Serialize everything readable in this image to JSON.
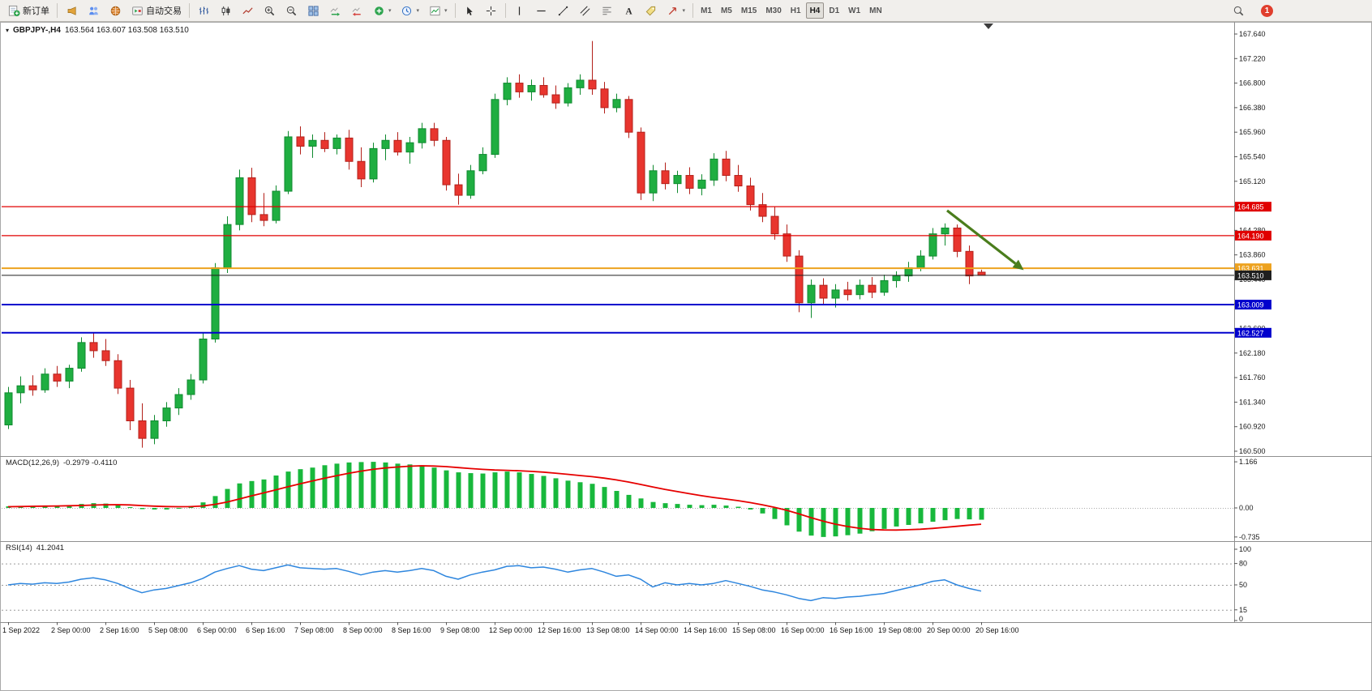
{
  "toolbar": {
    "new_order_label": "新订单",
    "autotrade_label": "自动交易",
    "timeframes": [
      "M1",
      "M5",
      "M15",
      "M30",
      "H1",
      "H4",
      "D1",
      "W1",
      "MN"
    ],
    "active_timeframe": "H4",
    "notification_count": "1"
  },
  "chart": {
    "title": "GBPJPY-,H4",
    "ohlc_text": "163.564 163.607 163.508 163.510",
    "macd_name": "MACD(12,26,9)",
    "macd_values": "-0.2979 -0.4110",
    "rsi_name": "RSI(14)",
    "rsi_value": "41.2041"
  },
  "chart_data": {
    "type": "candlestick",
    "symbol": "GBPJPY-",
    "timeframe": "H4",
    "ohlc_display": {
      "open": 163.564,
      "high": 163.607,
      "low": 163.508,
      "close": 163.51
    },
    "y_axis": {
      "min": 160.5,
      "max": 167.64,
      "step": 0.42
    },
    "colors": {
      "up": "#1fae41",
      "up_stroke": "#0f8a2f",
      "down": "#e8352e",
      "down_stroke": "#b3201a",
      "macd_hist": "#18b83c",
      "macd_signal": "#e60000",
      "rsi_line": "#2e86de"
    },
    "candles": [
      [
        160.95,
        161.6,
        160.88,
        161.5
      ],
      [
        161.5,
        161.78,
        161.32,
        161.62
      ],
      [
        161.62,
        161.8,
        161.45,
        161.55
      ],
      [
        161.55,
        161.92,
        161.5,
        161.82
      ],
      [
        161.82,
        161.96,
        161.6,
        161.7
      ],
      [
        161.7,
        161.98,
        161.58,
        161.92
      ],
      [
        161.92,
        162.45,
        161.86,
        162.36
      ],
      [
        162.36,
        162.52,
        162.1,
        162.22
      ],
      [
        162.22,
        162.42,
        161.96,
        162.05
      ],
      [
        162.05,
        162.16,
        161.48,
        161.58
      ],
      [
        161.58,
        161.72,
        160.86,
        161.02
      ],
      [
        161.02,
        161.32,
        160.56,
        160.72
      ],
      [
        160.72,
        161.12,
        160.62,
        161.02
      ],
      [
        161.02,
        161.34,
        160.92,
        161.24
      ],
      [
        161.24,
        161.58,
        161.12,
        161.47
      ],
      [
        161.47,
        161.82,
        161.38,
        161.72
      ],
      [
        161.72,
        162.52,
        161.66,
        162.42
      ],
      [
        162.42,
        163.72,
        162.36,
        163.64
      ],
      [
        163.64,
        164.52,
        163.55,
        164.38
      ],
      [
        164.38,
        165.32,
        164.28,
        165.18
      ],
      [
        165.18,
        165.35,
        164.42,
        164.55
      ],
      [
        164.55,
        164.92,
        164.35,
        164.45
      ],
      [
        164.45,
        165.05,
        164.4,
        164.95
      ],
      [
        164.95,
        165.98,
        164.9,
        165.88
      ],
      [
        165.88,
        166.06,
        165.58,
        165.72
      ],
      [
        165.72,
        165.92,
        165.52,
        165.82
      ],
      [
        165.82,
        165.96,
        165.62,
        165.68
      ],
      [
        165.68,
        165.92,
        165.58,
        165.86
      ],
      [
        165.86,
        166.0,
        165.32,
        165.46
      ],
      [
        165.46,
        165.7,
        165.02,
        165.16
      ],
      [
        165.16,
        165.78,
        165.1,
        165.68
      ],
      [
        165.68,
        165.92,
        165.48,
        165.82
      ],
      [
        165.82,
        165.96,
        165.56,
        165.62
      ],
      [
        165.62,
        165.88,
        165.42,
        165.78
      ],
      [
        165.78,
        166.12,
        165.68,
        166.02
      ],
      [
        166.02,
        166.12,
        165.72,
        165.82
      ],
      [
        165.82,
        165.88,
        164.96,
        165.06
      ],
      [
        165.06,
        165.25,
        164.72,
        164.88
      ],
      [
        164.88,
        165.4,
        164.82,
        165.3
      ],
      [
        165.3,
        165.7,
        165.24,
        165.58
      ],
      [
        165.58,
        166.62,
        165.52,
        166.52
      ],
      [
        166.52,
        166.9,
        166.42,
        166.8
      ],
      [
        166.8,
        166.95,
        166.55,
        166.65
      ],
      [
        166.65,
        166.86,
        166.5,
        166.76
      ],
      [
        166.76,
        166.9,
        166.55,
        166.6
      ],
      [
        166.6,
        166.76,
        166.36,
        166.46
      ],
      [
        166.46,
        166.8,
        166.4,
        166.72
      ],
      [
        166.72,
        166.95,
        166.6,
        166.85
      ],
      [
        166.85,
        167.52,
        166.6,
        166.7
      ],
      [
        166.7,
        166.82,
        166.28,
        166.38
      ],
      [
        166.38,
        166.62,
        166.3,
        166.52
      ],
      [
        166.52,
        166.58,
        165.86,
        165.96
      ],
      [
        165.96,
        166.04,
        164.8,
        164.92
      ],
      [
        164.92,
        165.4,
        164.78,
        165.3
      ],
      [
        165.3,
        165.44,
        164.98,
        165.08
      ],
      [
        165.08,
        165.3,
        164.92,
        165.22
      ],
      [
        165.22,
        165.36,
        164.9,
        165.0
      ],
      [
        165.0,
        165.24,
        164.88,
        165.14
      ],
      [
        165.14,
        165.6,
        165.04,
        165.5
      ],
      [
        165.5,
        165.64,
        165.12,
        165.22
      ],
      [
        165.22,
        165.4,
        164.94,
        165.04
      ],
      [
        165.04,
        165.18,
        164.62,
        164.72
      ],
      [
        164.72,
        164.92,
        164.42,
        164.52
      ],
      [
        164.52,
        164.68,
        164.12,
        164.22
      ],
      [
        164.22,
        164.38,
        163.74,
        163.84
      ],
      [
        163.84,
        163.94,
        162.88,
        163.04
      ],
      [
        163.04,
        163.44,
        162.78,
        163.34
      ],
      [
        163.34,
        163.46,
        163.02,
        163.12
      ],
      [
        163.12,
        163.36,
        162.96,
        163.26
      ],
      [
        163.26,
        163.4,
        163.08,
        163.18
      ],
      [
        163.18,
        163.44,
        163.1,
        163.34
      ],
      [
        163.34,
        163.48,
        163.12,
        163.22
      ],
      [
        163.22,
        163.52,
        163.16,
        163.42
      ],
      [
        163.42,
        163.58,
        163.3,
        163.5
      ],
      [
        163.5,
        163.74,
        163.4,
        163.64
      ],
      [
        163.64,
        163.94,
        163.58,
        163.84
      ],
      [
        163.84,
        164.32,
        163.78,
        164.22
      ],
      [
        164.22,
        164.4,
        164.02,
        164.32
      ],
      [
        164.32,
        164.38,
        163.82,
        163.92
      ],
      [
        163.92,
        164.02,
        163.36,
        163.5
      ],
      [
        163.564,
        163.607,
        163.508,
        163.51
      ]
    ],
    "time_labels": [
      {
        "i": 0,
        "t": "1 Sep 2022"
      },
      {
        "i": 4,
        "t": "2 Sep 00:00"
      },
      {
        "i": 8,
        "t": "2 Sep 16:00"
      },
      {
        "i": 12,
        "t": "5 Sep 08:00"
      },
      {
        "i": 16,
        "t": "6 Sep 00:00"
      },
      {
        "i": 20,
        "t": "6 Sep 16:00"
      },
      {
        "i": 24,
        "t": "7 Sep 08:00"
      },
      {
        "i": 28,
        "t": "8 Sep 00:00"
      },
      {
        "i": 32,
        "t": "8 Sep 16:00"
      },
      {
        "i": 36,
        "t": "9 Sep 08:00"
      },
      {
        "i": 40,
        "t": "12 Sep 00:00"
      },
      {
        "i": 44,
        "t": "12 Sep 16:00"
      },
      {
        "i": 48,
        "t": "13 Sep 08:00"
      },
      {
        "i": 52,
        "t": "14 Sep 00:00"
      },
      {
        "i": 56,
        "t": "14 Sep 16:00"
      },
      {
        "i": 60,
        "t": "15 Sep 08:00"
      },
      {
        "i": 64,
        "t": "16 Sep 00:00"
      },
      {
        "i": 68,
        "t": "16 Sep 16:00"
      },
      {
        "i": 72,
        "t": "19 Sep 08:00"
      },
      {
        "i": 76,
        "t": "20 Sep 00:00"
      },
      {
        "i": 80,
        "t": "20 Sep 16:00"
      }
    ],
    "hlines": [
      {
        "price": 164.685,
        "label": "164.685",
        "color": "#e00000",
        "width": 1.2
      },
      {
        "price": 164.19,
        "label": "164.190",
        "color": "#e00000",
        "width": 1.2
      },
      {
        "price": 163.631,
        "label": "163.631",
        "color": "#eda21f",
        "width": 2
      },
      {
        "price": 163.51,
        "label": "163.510",
        "color": "#1f1f1f",
        "width": 1
      },
      {
        "price": 163.009,
        "label": "163.009",
        "color": "#0000cd",
        "width": 2
      },
      {
        "price": 162.527,
        "label": "162.527",
        "color": "#0000cd",
        "width": 2
      }
    ],
    "arrow": {
      "from": {
        "i": 77.2,
        "price": 164.62
      },
      "to": {
        "i": 83.5,
        "price": 163.6
      },
      "color": "#4a7d1c"
    },
    "macd": {
      "name": "MACD(12,26,9)",
      "main_value": -0.2979,
      "signal_value": -0.411,
      "axis_labels": [
        {
          "v": 1.166,
          "t": "1.166"
        },
        {
          "v": 0,
          "t": "0.00"
        },
        {
          "v": -0.735,
          "t": "-0.735"
        }
      ],
      "histogram": [
        0.04,
        0.05,
        0.05,
        0.06,
        0.06,
        0.07,
        0.1,
        0.12,
        0.11,
        0.07,
        0.02,
        -0.03,
        -0.04,
        -0.04,
        -0.01,
        0.05,
        0.14,
        0.3,
        0.48,
        0.62,
        0.68,
        0.72,
        0.82,
        0.92,
        0.98,
        1.02,
        1.08,
        1.12,
        1.15,
        1.16,
        1.166,
        1.15,
        1.12,
        1.1,
        1.08,
        1.02,
        0.95,
        0.9,
        0.88,
        0.87,
        0.9,
        0.92,
        0.9,
        0.86,
        0.81,
        0.75,
        0.69,
        0.65,
        0.61,
        0.53,
        0.43,
        0.33,
        0.24,
        0.15,
        0.12,
        0.1,
        0.08,
        0.07,
        0.08,
        0.06,
        0.03,
        -0.04,
        -0.14,
        -0.28,
        -0.44,
        -0.6,
        -0.7,
        -0.735,
        -0.72,
        -0.69,
        -0.65,
        -0.59,
        -0.53,
        -0.47,
        -0.43,
        -0.39,
        -0.35,
        -0.31,
        -0.28,
        -0.29,
        -0.2979
      ],
      "signal": [
        0.03,
        0.035,
        0.04,
        0.045,
        0.05,
        0.055,
        0.062,
        0.072,
        0.08,
        0.082,
        0.075,
        0.06,
        0.045,
        0.035,
        0.03,
        0.032,
        0.05,
        0.09,
        0.15,
        0.225,
        0.305,
        0.38,
        0.455,
        0.535,
        0.61,
        0.68,
        0.75,
        0.815,
        0.875,
        0.93,
        0.975,
        1.01,
        1.035,
        1.055,
        1.065,
        1.06,
        1.045,
        1.02,
        0.995,
        0.975,
        0.96,
        0.95,
        0.94,
        0.925,
        0.905,
        0.88,
        0.85,
        0.82,
        0.79,
        0.755,
        0.71,
        0.655,
        0.595,
        0.53,
        0.47,
        0.415,
        0.36,
        0.31,
        0.265,
        0.225,
        0.185,
        0.135,
        0.08,
        0.015,
        -0.06,
        -0.15,
        -0.245,
        -0.335,
        -0.41,
        -0.47,
        -0.515,
        -0.545,
        -0.558,
        -0.56,
        -0.552,
        -0.538,
        -0.518,
        -0.492,
        -0.465,
        -0.437,
        -0.411
      ]
    },
    "rsi": {
      "name": "RSI(14)",
      "value": 41.2041,
      "levels": [
        80,
        50,
        15
      ],
      "axis_labels": [
        {
          "v": 100,
          "t": "100"
        },
        {
          "v": 80,
          "t": "80"
        },
        {
          "v": 50,
          "t": "50"
        },
        {
          "v": 15,
          "t": "15"
        },
        {
          "v": 0,
          "t": "0"
        }
      ],
      "values": [
        50,
        52,
        51,
        53,
        52,
        54,
        58,
        60,
        57,
        52,
        45,
        39,
        43,
        45,
        49,
        53,
        59,
        68,
        73,
        77,
        72,
        70,
        74,
        78,
        74,
        73,
        72,
        73,
        69,
        64,
        68,
        70,
        68,
        70,
        73,
        70,
        62,
        58,
        64,
        68,
        71,
        76,
        77,
        74,
        75,
        72,
        68,
        71,
        73,
        68,
        62,
        64,
        58,
        47,
        53,
        50,
        52,
        50,
        52,
        56,
        52,
        48,
        43,
        40,
        36,
        31,
        28,
        32,
        31,
        33,
        34,
        36,
        38,
        42,
        46,
        50,
        55,
        57,
        50,
        45,
        41.2
      ]
    }
  }
}
